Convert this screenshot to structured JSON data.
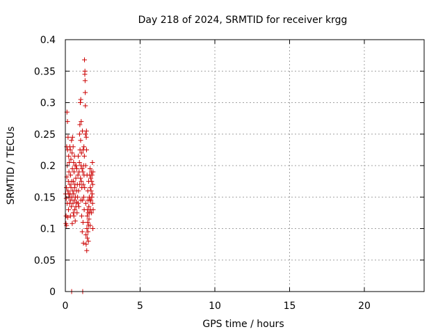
{
  "chart_data": {
    "type": "scatter",
    "title": "Day 218 of 2024, SRMTID for receiver krgg",
    "xlabel": "GPS time / hours",
    "ylabel": "SRMTID / TECUs",
    "xlim": [
      0,
      24
    ],
    "ylim": [
      0,
      0.4
    ],
    "xticks": [
      0,
      5,
      10,
      15,
      20
    ],
    "xtick_labels": [
      "0",
      "5",
      "10",
      "15",
      "20"
    ],
    "yticks": [
      0,
      0.05,
      0.1,
      0.15,
      0.2,
      0.25,
      0.3,
      0.35,
      0.4
    ],
    "ytick_labels": [
      "0",
      "0.05",
      "0.1",
      "0.15",
      "0.2",
      "0.25",
      "0.3",
      "0.35",
      "0.4"
    ],
    "grid": true,
    "marker": "plus",
    "marker_color": "#cc0000",
    "series": [
      {
        "points": [
          [
            0.02,
            0.155
          ],
          [
            0.04,
            0.108
          ],
          [
            0.05,
            0.12
          ],
          [
            0.06,
            0.148
          ],
          [
            0.07,
            0.165
          ],
          [
            0.08,
            0.105
          ],
          [
            0.09,
            0.23
          ],
          [
            0.1,
            0.182
          ],
          [
            0.11,
            0.285
          ],
          [
            0.12,
            0.14
          ],
          [
            0.13,
            0.2
          ],
          [
            0.14,
            0.27
          ],
          [
            0.15,
            0.225
          ],
          [
            0.16,
            0.118
          ],
          [
            0.17,
            0.16
          ],
          [
            0.18,
            0.245
          ],
          [
            0.2,
            0.175
          ],
          [
            0.21,
            0.13
          ],
          [
            0.22,
            0.215
          ],
          [
            0.23,
            0.155
          ],
          [
            0.24,
            0.19
          ],
          [
            0.25,
            0.15
          ],
          [
            0.26,
            0.205
          ],
          [
            0.28,
            0.14
          ],
          [
            0.3,
            0.23
          ],
          [
            0.31,
            0.17
          ],
          [
            0.32,
            0.155
          ],
          [
            0.33,
            0.225
          ],
          [
            0.34,
            0.12
          ],
          [
            0.35,
            0.185
          ],
          [
            0.36,
            0.145
          ],
          [
            0.37,
            0.21
          ],
          [
            0.38,
            0.165
          ],
          [
            0.4,
            0.135
          ],
          [
            0.41,
            0.24
          ],
          [
            0.42,
            0.0
          ],
          [
            0.43,
            0.175
          ],
          [
            0.44,
            0.15
          ],
          [
            0.45,
            0.22
          ],
          [
            0.46,
            0.108
          ],
          [
            0.47,
            0.195
          ],
          [
            0.48,
            0.245
          ],
          [
            0.5,
            0.16
          ],
          [
            0.51,
            0.14
          ],
          [
            0.52,
            0.23
          ],
          [
            0.53,
            0.125
          ],
          [
            0.54,
            0.175
          ],
          [
            0.55,
            0.205
          ],
          [
            0.56,
            0.155
          ],
          [
            0.57,
            0.12
          ],
          [
            0.58,
            0.19
          ],
          [
            0.6,
            0.145
          ],
          [
            0.61,
            0.215
          ],
          [
            0.62,
            0.165
          ],
          [
            0.63,
            0.13
          ],
          [
            0.64,
            0.17
          ],
          [
            0.65,
            0.2
          ],
          [
            0.66,
            0.112
          ],
          [
            0.68,
            0.15
          ],
          [
            0.7,
            0.18
          ],
          [
            0.71,
            0.135
          ],
          [
            0.72,
            0.2
          ],
          [
            0.74,
            0.16
          ],
          [
            0.75,
            0.142
          ],
          [
            0.76,
            0.195
          ],
          [
            0.78,
            0.125
          ],
          [
            0.8,
            0.17
          ],
          [
            0.82,
            0.15
          ],
          [
            0.84,
            0.185
          ],
          [
            0.85,
            0.14
          ],
          [
            0.86,
            0.215
          ],
          [
            0.88,
            0.16
          ],
          [
            0.9,
            0.135
          ],
          [
            0.92,
            0.19
          ],
          [
            0.94,
            0.205
          ],
          [
            0.95,
            0.25
          ],
          [
            0.96,
            0.17
          ],
          [
            0.97,
            0.265
          ],
          [
            0.98,
            0.225
          ],
          [
            1.0,
            0.3
          ],
          [
            1.01,
            0.18
          ],
          [
            1.02,
            0.24
          ],
          [
            1.03,
            0.305
          ],
          [
            1.04,
            0.145
          ],
          [
            1.05,
            0.2
          ],
          [
            1.06,
            0.27
          ],
          [
            1.07,
            0.175
          ],
          [
            1.08,
            0.22
          ],
          [
            1.09,
            0.12
          ],
          [
            1.1,
            0.165
          ],
          [
            1.12,
            0.195
          ],
          [
            1.13,
            0.095
          ],
          [
            1.14,
            0.255
          ],
          [
            1.15,
            0.145
          ],
          [
            1.16,
            0.0
          ],
          [
            1.17,
            0.19
          ],
          [
            1.18,
            0.11
          ],
          [
            1.19,
            0.225
          ],
          [
            1.2,
            0.17
          ],
          [
            1.21,
            0.077
          ],
          [
            1.22,
            0.2
          ],
          [
            1.23,
            0.15
          ],
          [
            1.24,
            0.23
          ],
          [
            1.25,
            0.185
          ],
          [
            1.26,
            0.13
          ],
          [
            1.27,
            0.215
          ],
          [
            1.28,
            0.368
          ],
          [
            1.29,
            0.165
          ],
          [
            1.3,
            0.345
          ],
          [
            1.31,
            0.35
          ],
          [
            1.32,
            0.335
          ],
          [
            1.33,
            0.316
          ],
          [
            1.34,
            0.295
          ],
          [
            1.35,
            0.25
          ],
          [
            1.36,
            0.2
          ],
          [
            1.37,
            0.14
          ],
          [
            1.38,
            0.09
          ],
          [
            1.39,
            0.075
          ],
          [
            1.4,
            0.245
          ],
          [
            1.41,
            0.255
          ],
          [
            1.42,
            0.225
          ],
          [
            1.43,
            0.065
          ],
          [
            1.44,
            0.1
          ],
          [
            1.45,
            0.185
          ],
          [
            1.46,
            0.12
          ],
          [
            1.47,
            0.085
          ],
          [
            1.48,
            0.13
          ],
          [
            1.49,
            0.11
          ],
          [
            1.5,
            0.16
          ],
          [
            1.51,
            0.095
          ],
          [
            1.52,
            0.145
          ],
          [
            1.53,
            0.125
          ],
          [
            1.54,
            0.08
          ],
          [
            1.55,
            0.105
          ],
          [
            1.56,
            0.175
          ],
          [
            1.57,
            0.135
          ],
          [
            1.58,
            0.115
          ],
          [
            1.6,
            0.15
          ],
          [
            1.62,
            0.125
          ],
          [
            1.63,
            0.185
          ],
          [
            1.64,
            0.145
          ],
          [
            1.65,
            0.195
          ],
          [
            1.66,
            0.105
          ],
          [
            1.67,
            0.165
          ],
          [
            1.68,
            0.13
          ],
          [
            1.7,
            0.18
          ],
          [
            1.71,
            0.145
          ],
          [
            1.72,
            0.16
          ],
          [
            1.74,
            0.19
          ],
          [
            1.75,
            0.125
          ],
          [
            1.76,
            0.175
          ],
          [
            1.77,
            0.15
          ],
          [
            1.78,
            0.185
          ],
          [
            1.8,
            0.155
          ],
          [
            1.81,
            0.205
          ],
          [
            1.82,
            0.14
          ],
          [
            1.83,
            0.17
          ],
          [
            1.84,
            0.1
          ],
          [
            1.85,
            0.19
          ],
          [
            1.86,
            0.13
          ]
        ]
      }
    ]
  }
}
